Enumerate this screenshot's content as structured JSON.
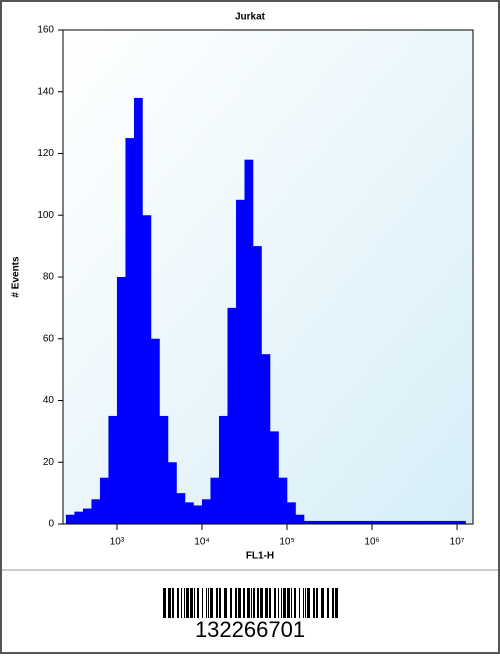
{
  "chart_data": {
    "type": "histogram",
    "title": "Jurkat",
    "xlabel": "FL1-H",
    "ylabel": "# Events",
    "log_x": true,
    "color": "#0000ff",
    "bins": [
      251,
      316,
      398,
      501,
      631,
      794,
      1000,
      1259,
      1585,
      1995,
      2512,
      3162,
      3981,
      5012,
      6310,
      7943,
      10000,
      12589,
      15849,
      19953,
      25119,
      31623,
      39811,
      50119,
      63096,
      79433,
      100000,
      125893,
      158489,
      199526,
      251189,
      316228,
      398107,
      501187,
      630957,
      794328,
      1000000,
      1258925,
      1584893,
      1995262,
      2511886,
      3162278,
      3981072,
      5011872,
      6309573,
      7943282,
      10000000,
      12589254
    ],
    "values": [
      3,
      4,
      5,
      8,
      15,
      35,
      80,
      125,
      138,
      100,
      60,
      35,
      20,
      10,
      7,
      6,
      8,
      15,
      35,
      70,
      105,
      118,
      90,
      55,
      30,
      15,
      7,
      3,
      1,
      1,
      1,
      1,
      1,
      1,
      1,
      1,
      1,
      1,
      1,
      1,
      1,
      1,
      1,
      1,
      1,
      1,
      1
    ],
    "xlim": [
      232,
      15400000
    ],
    "xticks": [
      {
        "value": 1000,
        "label": "10³"
      },
      {
        "value": 10000,
        "label": "10⁴"
      },
      {
        "value": 100000,
        "label": "10⁵"
      },
      {
        "value": 1000000,
        "label": "10⁶"
      },
      {
        "value": 10000000,
        "label": "10⁷"
      }
    ],
    "ylim": [
      0,
      160
    ],
    "yticks": [
      0,
      20,
      40,
      60,
      80,
      100,
      120,
      140,
      160
    ]
  },
  "barcode": {
    "number": "132266701"
  }
}
